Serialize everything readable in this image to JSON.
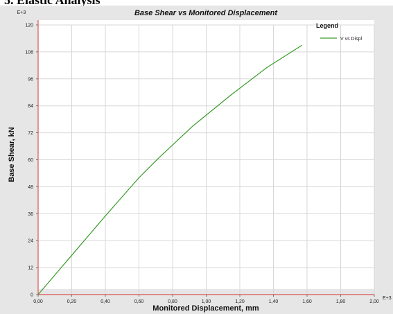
{
  "caption": "5. Elastic Analysis",
  "colors": {
    "series": "#3a9a2a",
    "axis": "#d9534f",
    "grid": "#d7d7d7",
    "background": "#e6e6e6",
    "plot": "#ffffff"
  },
  "chart_data": {
    "type": "line",
    "title": "Base Shear vs Monitored Displacement",
    "xlabel": "Monitored Displacement, mm",
    "ylabel": "Base Shear, kN",
    "x_exponent_label": "E+3",
    "y_exponent_label": "E+3",
    "xlim": [
      0,
      2.0
    ],
    "ylim": [
      0,
      120
    ],
    "x_ticks": [
      "0,00",
      "0,20",
      "0,40",
      "0,60",
      "0,80",
      "1,00",
      "1,20",
      "1,40",
      "1,60",
      "1,80",
      "2,00"
    ],
    "y_ticks": [
      "0",
      "12",
      "24",
      "36",
      "48",
      "60",
      "72",
      "84",
      "96",
      "108",
      "120"
    ],
    "grid": true,
    "legend": {
      "title": "Legend",
      "placement": "top-right"
    },
    "series": [
      {
        "name": "V vs Displ",
        "x": [
          0.0,
          0.2,
          0.4,
          0.6,
          0.72,
          0.92,
          1.15,
          1.36,
          1.57
        ],
        "y": [
          0.0,
          17.5,
          35.0,
          52.0,
          61.0,
          75.0,
          89.0,
          101.0,
          111.0
        ]
      }
    ]
  }
}
